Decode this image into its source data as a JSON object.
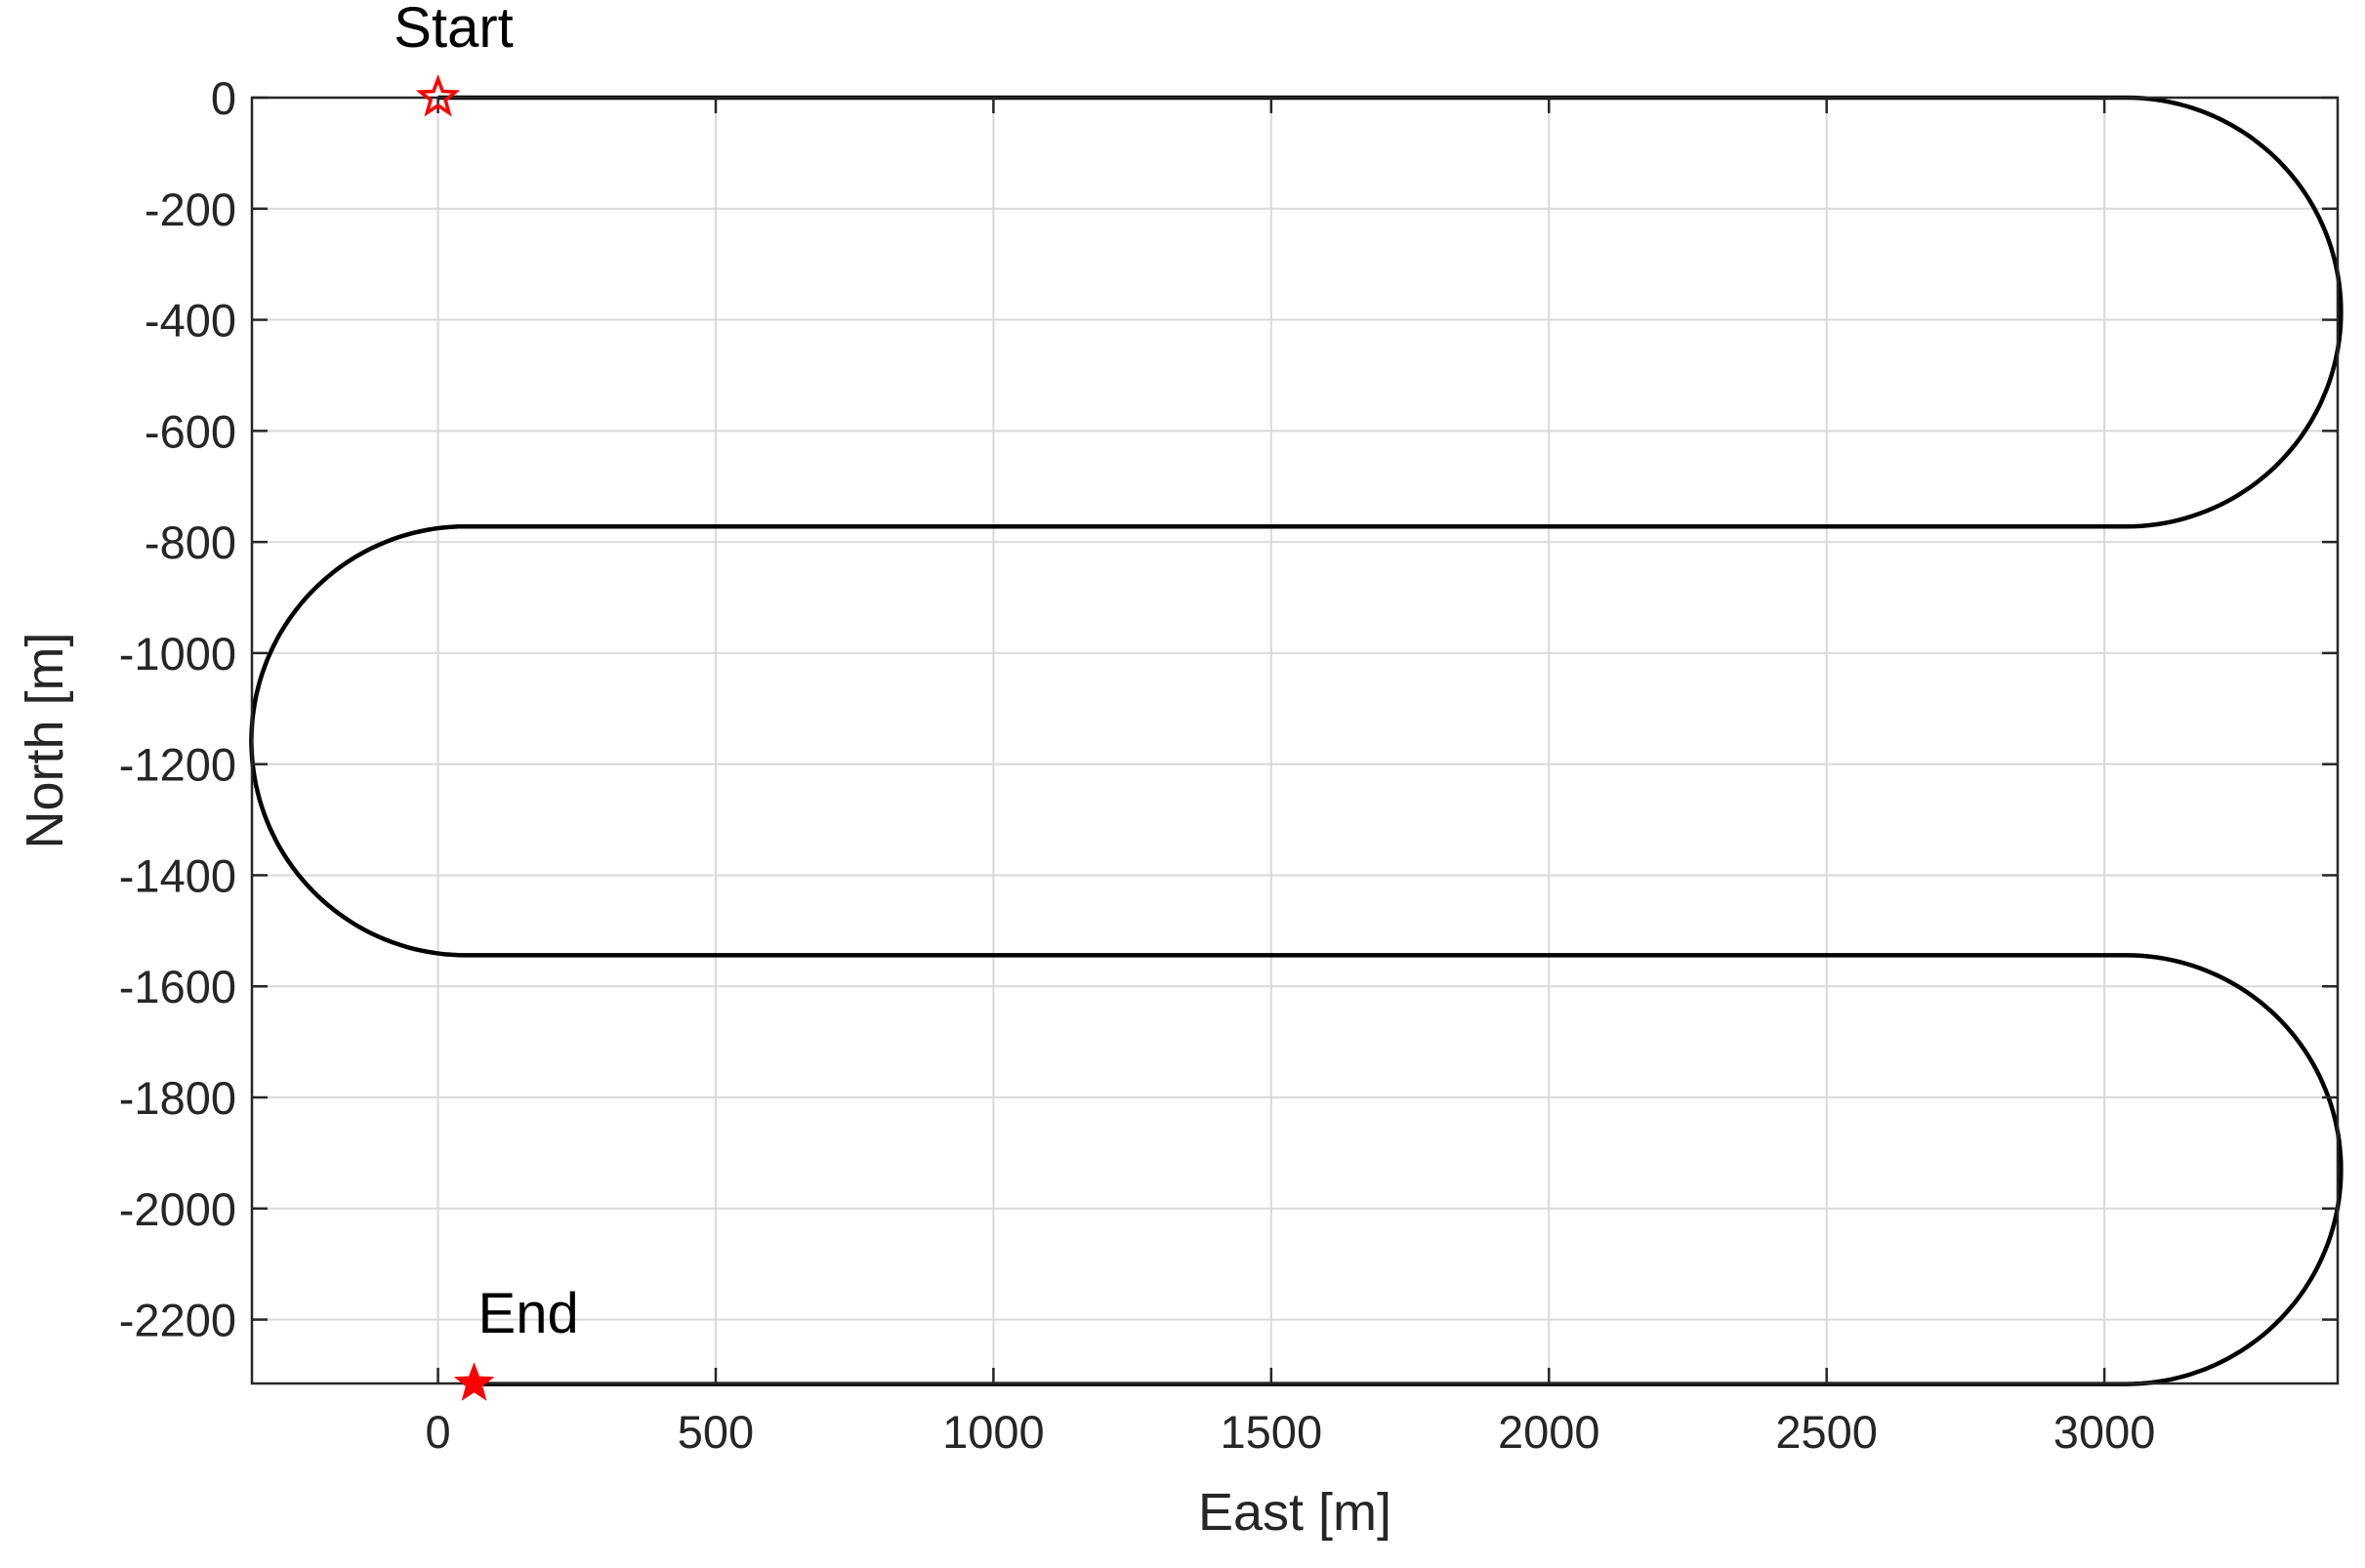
{
  "chart_data": {
    "type": "line",
    "title": "",
    "xlabel": "East [m]",
    "ylabel": "North [m]",
    "xlim": [
      -335,
      3420
    ],
    "ylim": [
      -2315,
      0
    ],
    "xticks": [
      0,
      500,
      1000,
      1500,
      2000,
      2500,
      3000
    ],
    "xtick_labels": [
      "0",
      "500",
      "1000",
      "1500",
      "2000",
      "2500",
      "3000"
    ],
    "yticks": [
      0,
      -200,
      -400,
      -600,
      -800,
      -1000,
      -1200,
      -1400,
      -1600,
      -1800,
      -2000,
      -2200
    ],
    "ytick_labels": [
      "0",
      "-200",
      "-400",
      "-600",
      "-800",
      "-1000",
      "-1200",
      "-1400",
      "-1600",
      "-1800",
      "-2000",
      "-2200"
    ],
    "grid": true,
    "series": [
      {
        "color": "#000000",
        "segments": [
          {
            "kind": "line",
            "x0": 0,
            "y0": 0,
            "x1": 3040,
            "y1": 0
          },
          {
            "kind": "arc",
            "cx": 3040,
            "cy": -386,
            "r": 386,
            "from_deg": 90,
            "to_deg": -90
          },
          {
            "kind": "line",
            "x0": 3040,
            "y0": -772,
            "x1": 50,
            "y1": -772
          },
          {
            "kind": "arc",
            "cx": 50,
            "cy": -1158,
            "r": 386,
            "from_deg": 90,
            "to_deg": 270
          },
          {
            "kind": "line",
            "x0": 50,
            "y0": -1544,
            "x1": 3040,
            "y1": -1544
          },
          {
            "kind": "arc",
            "cx": 3040,
            "cy": -1930,
            "r": 386,
            "from_deg": 90,
            "to_deg": -90
          },
          {
            "kind": "line",
            "x0": 3040,
            "y0": -2316,
            "x1": 60,
            "y1": -2316
          }
        ]
      }
    ],
    "markers": [
      {
        "label": "Start",
        "x": 0,
        "y": 0,
        "color": "#ff0000",
        "style": "star-outline"
      },
      {
        "label": "End",
        "x": 65,
        "y": -2315,
        "color": "#ff0000",
        "style": "star-filled"
      }
    ]
  }
}
